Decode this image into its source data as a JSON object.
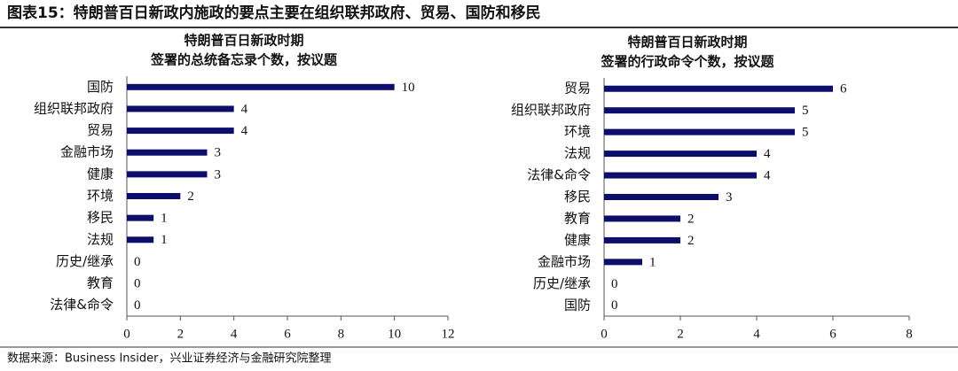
{
  "header": {
    "title": "图表15：特朗普百日新政内施政的要点主要在组织联邦政府、贸易、国防和移民"
  },
  "chart_data": [
    {
      "type": "bar",
      "orientation": "horizontal",
      "title": "特朗普百日新政时期",
      "subtitle": "签署的总统备忘录个数，按议题",
      "categories": [
        "国防",
        "组织联邦政府",
        "贸易",
        "金融市场",
        "健康",
        "环境",
        "移民",
        "法规",
        "历史/继承",
        "教育",
        "法律&命令"
      ],
      "values": [
        10,
        4,
        4,
        3,
        3,
        2,
        1,
        1,
        0,
        0,
        0
      ],
      "color": "#0d0d6b",
      "xlim": [
        0,
        12
      ],
      "xticks": [
        0,
        2,
        4,
        6,
        8,
        10,
        12
      ],
      "grid": false
    },
    {
      "type": "bar",
      "orientation": "horizontal",
      "title": "特朗普百日新政时期",
      "subtitle": "签署的行政命令个数，按议题",
      "categories": [
        "贸易",
        "组织联邦政府",
        "环境",
        "法规",
        "法律&命令",
        "移民",
        "教育",
        "健康",
        "金融市场",
        "历史/继承",
        "国防"
      ],
      "values": [
        6,
        5,
        5,
        4,
        4,
        3,
        2,
        2,
        1,
        0,
        0
      ],
      "color": "#0d0d6b",
      "xlim": [
        0,
        8
      ],
      "xticks": [
        0,
        2,
        4,
        6,
        8
      ],
      "grid": false
    }
  ],
  "footer": {
    "source": "数据来源：Business Insider，兴业证券经济与金融研究院整理"
  }
}
